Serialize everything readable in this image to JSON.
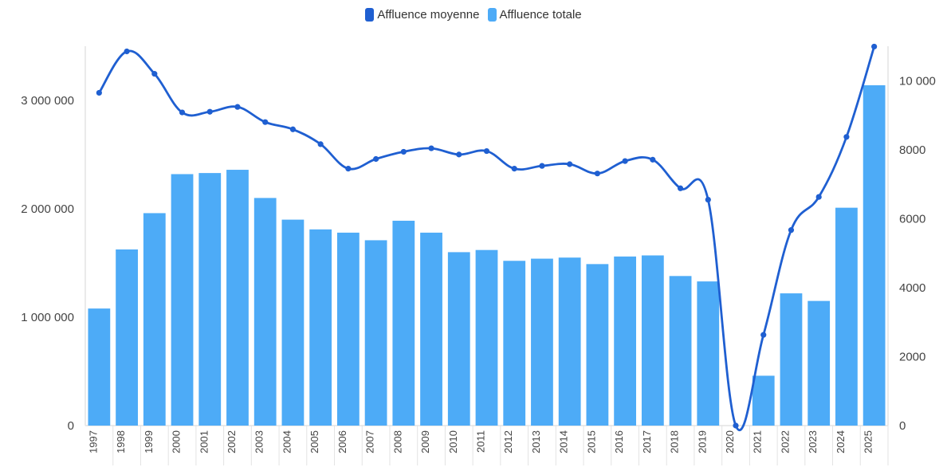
{
  "colors": {
    "bars": "#4dabf7",
    "line": "#1f5fd1",
    "axis": "#e3e3e3"
  },
  "legend": [
    {
      "label": "Affluence moyenne",
      "color": "#1f5fd1"
    },
    {
      "label": "Affluence totale",
      "color": "#4dabf7"
    }
  ],
  "chart_data": {
    "type": "bar",
    "categories": [
      "1997",
      "1998",
      "1999",
      "2000",
      "2001",
      "2002",
      "2003",
      "2004",
      "2005",
      "2006",
      "2007",
      "2008",
      "2009",
      "2010",
      "2011",
      "2012",
      "2013",
      "2014",
      "2015",
      "2016",
      "2017",
      "2018",
      "2019",
      "2020",
      "2021",
      "2022",
      "2023",
      "2024",
      "2025"
    ],
    "series": [
      {
        "name": "Affluence totale",
        "type": "bar",
        "axis": "left",
        "values": [
          1080000,
          1625000,
          1960000,
          2320000,
          2330000,
          2360000,
          2100000,
          1900000,
          1810000,
          1780000,
          1710000,
          1890000,
          1780000,
          1600000,
          1620000,
          1520000,
          1540000,
          1550000,
          1490000,
          1560000,
          1570000,
          1380000,
          1330000,
          0,
          460000,
          1220000,
          1150000,
          2010000,
          3140000
        ]
      },
      {
        "name": "Affluence moyenne",
        "type": "line",
        "axis": "right",
        "values": [
          9650,
          10850,
          10200,
          9080,
          9100,
          9240,
          8800,
          8590,
          8160,
          7450,
          7730,
          7940,
          8040,
          7860,
          7960,
          7450,
          7530,
          7580,
          7310,
          7670,
          7710,
          6880,
          6550,
          0,
          2630,
          5670,
          6630,
          8370,
          10990
        ]
      }
    ],
    "y_left": {
      "ylim": [
        0,
        3500000
      ],
      "ticks": [
        0,
        1000000,
        2000000,
        3000000
      ],
      "tick_labels": [
        "0",
        "1 000 000",
        "2 000 000",
        "3 000 000"
      ]
    },
    "y_right": {
      "ylim": [
        0,
        11000
      ],
      "ticks": [
        0,
        2000,
        4000,
        6000,
        8000,
        10000
      ],
      "tick_labels": [
        "0",
        "2000",
        "4000",
        "6000",
        "8000",
        "10 000"
      ]
    },
    "grid": false,
    "legend_position": "top-center"
  }
}
